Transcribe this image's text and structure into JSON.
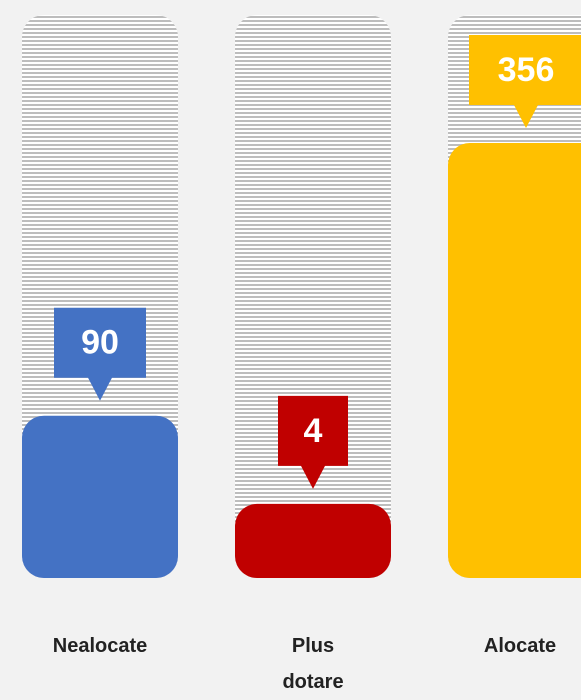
{
  "chart_data": {
    "type": "bar",
    "categories": [
      "Nealocate",
      "Plus dotare",
      "Alocate"
    ],
    "values": [
      90,
      4,
      356
    ],
    "colors": [
      "#4472c4",
      "#c00000",
      "#ffc000"
    ]
  }
}
